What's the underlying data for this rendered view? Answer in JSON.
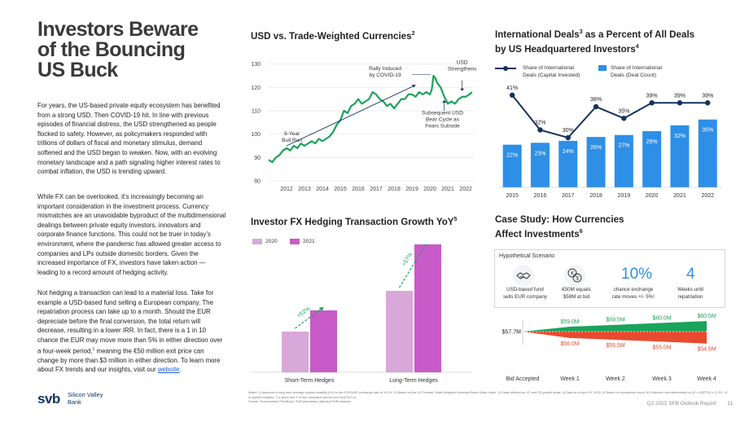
{
  "left": {
    "title_lines": [
      "Investors Beware",
      "of the Bouncing",
      "US Buck"
    ],
    "paragraphs": [
      "For years, the US-based private equity ecosystem has benefited from a strong USD. Then COVID-19 hit. In line with previous episodes of financial distress, the USD strengthened as people flocked to safety. However, as policymakers responded with trillions of dollars of fiscal and monetary stimulus, demand softened and the USD began to weaken. Now, with an evolving monetary landscape and a path signaling higher interest rates to combat inflation, the USD is trending upward.",
      "While FX can be overlooked, it’s increasingly becoming an important consideration in the investment process. Currency mismatches are an unavoidable byproduct of the multidimensional dealings between private equity investors, innovators and corporate finance functions. This could not be truer in today’s environment, where the pandemic has allowed greater access to companies and LPs outside domestic borders. Given the increased importance of FX, investors have taken action — leading to a record amount of hedging activity."
    ],
    "para3_text": "Not hedging a transaction can lead to a material loss. Take for example a USD-based fund selling a European company. The repatriation process can take up to a month. Should the EUR depreciate before the final conversion, the total return will decrease, resulting in a lower IRR. In fact, there is a 1 in 10 chance the EUR may move more than 5% in either direction over a four-week period,",
    "para3_sup": "1",
    "para3_rest": " meaning the €50 million exit price can change by more than $3 million in either direction. To learn more about FX trends and our insights, visit our ",
    "para3_link": "website",
    "para3_end": "."
  },
  "logo": {
    "mark": "svb",
    "name_line1": "Silicon Valley",
    "name_line2": "Bank"
  },
  "notes": "Notes: 1) Assumes a long-term average implied volatility (IV) for the EUR/USD exchange rate of 11.2%. 2) Based on the US Federal Trade Weighted Nominal Broad Dollar Index. 3) Deals defined as VC and PE growth deals. 4) Data as of April 19, 2022. 5) Based on transaction count. 6) Projected loss determined by (IV x SQRT(t) x Z) /SL. IV is implied volatility, T is years and Z is from standard normal such that P(Z>z).",
  "source": "Source: Economedia, PitchBook, SVB proprietary data and SVB analysis",
  "footer": {
    "report": "Q2 2022 SFB Outlook Report",
    "page": "11"
  },
  "colors": {
    "navy": "#0d3660",
    "green": "#1aa35a",
    "blue": "#2e8fe6",
    "light_purple": "#d8a8d8",
    "magenta": "#c85bc8",
    "red": "#e84b2f",
    "dark_line": "#17335c"
  },
  "usd_chart": {
    "title": "USD vs. Trade-Weighted Currencies",
    "title_sup": "2",
    "annotations": {
      "bull_run": [
        "8-Year",
        "Bull Run"
      ],
      "covid": [
        "Rally Induced",
        "by COVID-19"
      ],
      "strengthens": [
        "USD",
        "Strengthens"
      ],
      "bear": [
        "Subsequent USD",
        "Bear Cycle as",
        "Fears Subside"
      ]
    }
  },
  "intl_chart": {
    "title": "International Deals",
    "title_sup1": "3",
    "title_mid": " as a Percent of All Deals",
    "title_line2": "by US Headquartered Investors",
    "title_sup2": "4",
    "legend_line": [
      "Share of International",
      "Deals (Capital Invested)"
    ],
    "legend_bar": [
      "Share of International",
      "Deals (Deal Count)"
    ]
  },
  "hedge_chart": {
    "title": "Investor FX Hedging Transaction Growth YoY",
    "title_sup": "5",
    "legend": [
      "2020",
      "2021"
    ],
    "growth_labels": [
      "+52%",
      "+57%"
    ]
  },
  "case": {
    "title_line1": "Case Study: How Currencies",
    "title_line2": "Affect Investments",
    "title_sup": "6",
    "scenario_header": "Hypothetical Scenario",
    "icon1": "handshake-icon",
    "icon2": "euro-dollar-exchange-icon",
    "big1": "10%",
    "big2": "4",
    "captions": [
      [
        "USD-based fund",
        "sells EUR company"
      ],
      [
        "€50M equals",
        "$58M at bid"
      ],
      [
        "chance exchange",
        "rate moves +/- 5%¹"
      ],
      [
        "Weeks until",
        "repatriation"
      ]
    ]
  },
  "chart_data": [
    {
      "type": "line",
      "title": "USD vs. Trade-Weighted Currencies",
      "x_ticks": [
        "2012",
        "2013",
        "2014",
        "2015",
        "2016",
        "2017",
        "2018",
        "2019",
        "2020",
        "2021",
        "2022"
      ],
      "y_ticks": [
        "80",
        "90",
        "100",
        "110",
        "120",
        "130"
      ],
      "ylim": [
        80,
        133
      ],
      "x": [
        2011.0,
        2011.2,
        2011.4,
        2011.6,
        2011.8,
        2012.0,
        2012.2,
        2012.4,
        2012.6,
        2012.8,
        2013.0,
        2013.2,
        2013.4,
        2013.6,
        2013.8,
        2014.0,
        2014.2,
        2014.4,
        2014.6,
        2014.8,
        2015.0,
        2015.2,
        2015.4,
        2015.6,
        2015.8,
        2016.0,
        2016.2,
        2016.4,
        2016.6,
        2016.8,
        2017.0,
        2017.2,
        2017.4,
        2017.6,
        2017.8,
        2018.0,
        2018.2,
        2018.4,
        2018.6,
        2018.8,
        2019.0,
        2019.2,
        2019.4,
        2019.6,
        2019.8,
        2020.0,
        2020.1,
        2020.2,
        2020.3,
        2020.4,
        2020.6,
        2020.8,
        2021.0,
        2021.2,
        2021.4,
        2021.6,
        2021.8,
        2022.0,
        2022.2,
        2022.35
      ],
      "series": [
        {
          "values": [
            89,
            88,
            90,
            91,
            93,
            94,
            93,
            95,
            94,
            96,
            95,
            96,
            97,
            96,
            98,
            97,
            98,
            99,
            101,
            104,
            106,
            110,
            109,
            112,
            113,
            115,
            113,
            114,
            115,
            118,
            117,
            115,
            114,
            112,
            113,
            111,
            113,
            115,
            115,
            117,
            117,
            116,
            118,
            117,
            118,
            117,
            119,
            125,
            124,
            122,
            120,
            116,
            113,
            114,
            113,
            115,
            116,
            116,
            117,
            118
          ]
        }
      ]
    },
    {
      "type": "bar",
      "title": "International Deals as a Percent of All Deals by US Headquartered Investors",
      "categories": [
        "2015",
        "2016",
        "2017",
        "2018",
        "2019",
        "2020",
        "2021",
        "2022"
      ],
      "series": [
        {
          "name": "Share of International Deals (Deal Count)",
          "values": [
            22,
            23,
            24,
            26,
            27,
            29,
            32,
            35
          ],
          "labels": [
            "22%",
            "23%",
            "24%",
            "26%",
            "27%",
            "29%",
            "32%",
            "35%"
          ]
        },
        {
          "name": "Share of International Deals (Capital Invested)",
          "values": [
            41,
            32,
            30,
            38,
            35,
            39,
            39,
            39
          ],
          "labels": [
            "41%",
            "32%",
            "30%",
            "38%",
            "35%",
            "39%",
            "39%",
            "39%"
          ]
        }
      ]
    },
    {
      "type": "bar",
      "title": "Investor FX Hedging Transaction Growth YoY",
      "categories": [
        "Short-Term Hedges",
        "Long-Term Hedges"
      ],
      "series": [
        {
          "name": "2020",
          "values": [
            1.0,
            2.0
          ]
        },
        {
          "name": "2021",
          "values": [
            1.52,
            3.14
          ]
        }
      ]
    },
    {
      "type": "line",
      "title": "Case Study: How Currencies Affect Investments",
      "categories": [
        "Bid Accepted",
        "Week 1",
        "Week 2",
        "Week 3",
        "Week 4"
      ],
      "start_label": "$57.7M",
      "start_value": 57.7,
      "series": [
        {
          "name": "upper",
          "values": [
            57.7,
            59.0,
            59.5,
            60.0,
            60.5
          ],
          "labels": [
            "",
            "$59.0M",
            "$59.5M",
            "$60.0M",
            "$60.5M"
          ]
        },
        {
          "name": "lower",
          "values": [
            57.7,
            56.0,
            55.5,
            55.0,
            54.5
          ],
          "labels": [
            "",
            "$56.0M",
            "$55.5M",
            "$55.0M",
            "$54.5M"
          ]
        }
      ]
    }
  ]
}
